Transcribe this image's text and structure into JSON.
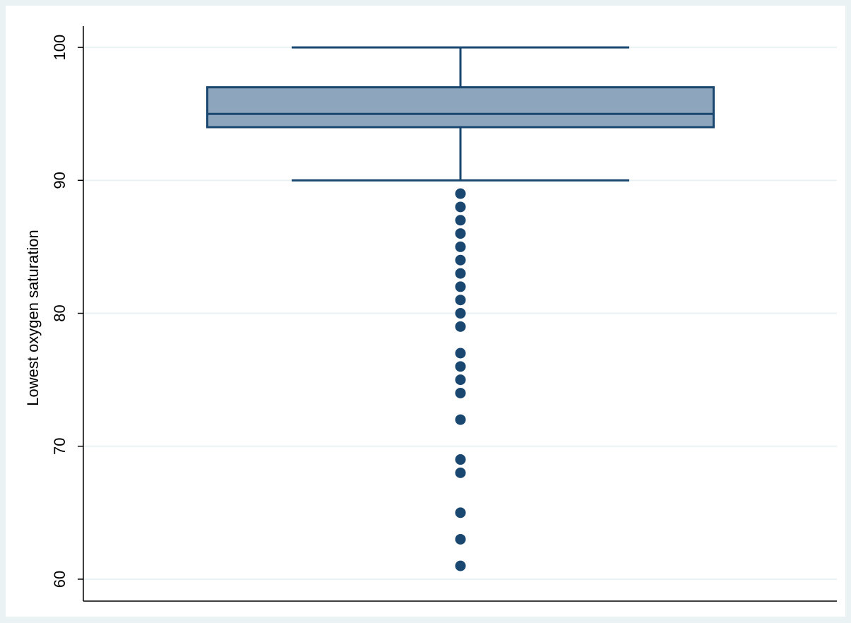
{
  "chart_data": {
    "type": "box",
    "y_label": "Lowest oxygen saturation",
    "whisker_low": 90,
    "q1": 94,
    "median": 95,
    "q3": 97,
    "whisker_high": 100,
    "outliers": [
      89,
      88,
      87,
      86,
      85,
      84,
      83,
      82,
      81,
      80,
      79,
      77,
      76,
      75,
      74,
      72,
      69,
      68,
      65,
      63,
      61
    ],
    "box_color": "#8ea6bd",
    "line_color": "#1a476f",
    "ylim": [
      58.35,
      101.6
    ],
    "yticks": [
      60,
      70,
      80,
      90,
      100
    ],
    "grid": true
  }
}
